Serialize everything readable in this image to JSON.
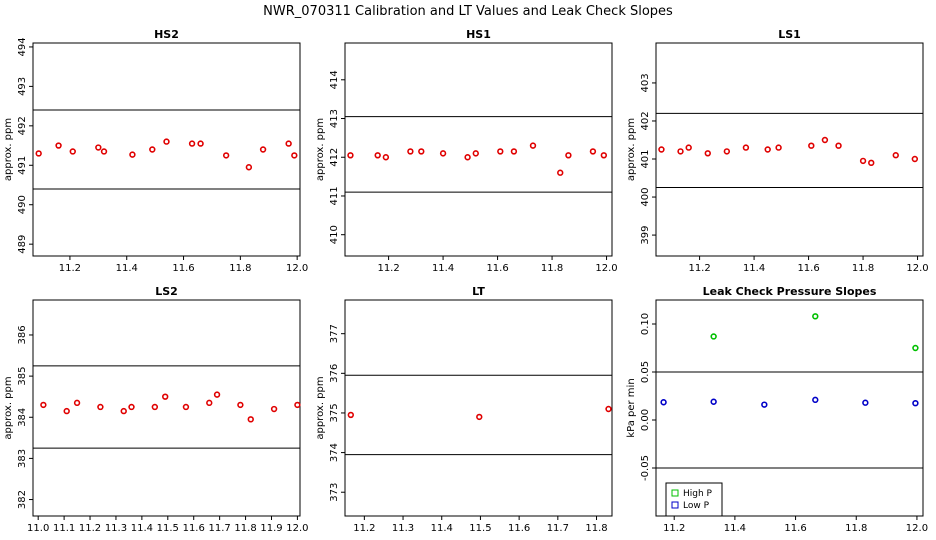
{
  "figure": {
    "title": "NWR_070311  Calibration and LT Values and Leak Check Slopes"
  },
  "chart_data": [
    {
      "id": "hs2",
      "type": "scatter",
      "title": "HS2",
      "ylabel": "approx. ppm",
      "xlim": [
        11.07,
        12.01
      ],
      "ylim": [
        488.7,
        494.1
      ],
      "xticks": [
        11.2,
        11.4,
        11.6,
        11.8,
        12.0
      ],
      "xtick_labels": [
        "11.2",
        "11.4",
        "11.6",
        "11.8",
        "12.0"
      ],
      "yticks": [
        489,
        490,
        491,
        492,
        493,
        494
      ],
      "ytick_labels": [
        "489",
        "490",
        "491",
        "492",
        "493",
        "494"
      ],
      "hlines": [
        490.4,
        492.4
      ],
      "series": [
        {
          "color": "#e00000",
          "marker": "circle",
          "x": [
            11.09,
            11.16,
            11.21,
            11.3,
            11.32,
            11.42,
            11.49,
            11.54,
            11.63,
            11.66,
            11.75,
            11.83,
            11.88,
            11.97,
            11.99
          ],
          "y": [
            491.3,
            491.5,
            491.35,
            491.45,
            491.35,
            491.27,
            491.4,
            491.6,
            491.55,
            491.55,
            491.25,
            490.95,
            491.4,
            491.55,
            491.25
          ]
        }
      ]
    },
    {
      "id": "hs1",
      "type": "scatter",
      "title": "HS1",
      "ylabel": "approx. ppm",
      "xlim": [
        11.04,
        12.02
      ],
      "ylim": [
        409.45,
        414.95
      ],
      "xticks": [
        11.2,
        11.4,
        11.6,
        11.8,
        12.0
      ],
      "xtick_labels": [
        "11.2",
        "11.4",
        "11.6",
        "11.8",
        "12.0"
      ],
      "yticks": [
        410,
        411,
        412,
        413,
        414
      ],
      "ytick_labels": [
        "410",
        "411",
        "412",
        "413",
        "414"
      ],
      "hlines": [
        411.1,
        413.05
      ],
      "series": [
        {
          "color": "#e00000",
          "marker": "circle",
          "x": [
            11.06,
            11.16,
            11.19,
            11.28,
            11.32,
            11.4,
            11.49,
            11.52,
            11.61,
            11.66,
            11.73,
            11.83,
            11.86,
            11.95,
            11.99
          ],
          "y": [
            412.05,
            412.05,
            412.0,
            412.15,
            412.15,
            412.1,
            412.0,
            412.1,
            412.15,
            412.15,
            412.3,
            411.6,
            412.05,
            412.15,
            412.05
          ]
        }
      ]
    },
    {
      "id": "ls1",
      "type": "scatter",
      "title": "LS1",
      "ylabel": "approx. ppm",
      "xlim": [
        11.04,
        12.02
      ],
      "ylim": [
        398.45,
        404.05
      ],
      "xticks": [
        11.2,
        11.4,
        11.6,
        11.8,
        12.0
      ],
      "xtick_labels": [
        "11.2",
        "11.4",
        "11.6",
        "11.8",
        "12.0"
      ],
      "yticks": [
        399,
        400,
        401,
        402,
        403
      ],
      "ytick_labels": [
        "399",
        "400",
        "401",
        "402",
        "403"
      ],
      "hlines": [
        400.25,
        402.2
      ],
      "series": [
        {
          "color": "#e00000",
          "marker": "circle",
          "x": [
            11.06,
            11.13,
            11.16,
            11.23,
            11.3,
            11.37,
            11.45,
            11.49,
            11.61,
            11.66,
            11.71,
            11.8,
            11.83,
            11.92,
            11.99
          ],
          "y": [
            401.25,
            401.2,
            401.3,
            401.15,
            401.2,
            401.3,
            401.25,
            401.3,
            401.35,
            401.5,
            401.35,
            400.95,
            400.9,
            401.1,
            401.0
          ]
        }
      ]
    },
    {
      "id": "ls2",
      "type": "scatter",
      "title": "LS2",
      "ylabel": "approx. ppm",
      "xlim": [
        10.98,
        12.01
      ],
      "ylim": [
        381.6,
        386.85
      ],
      "xticks": [
        11.0,
        11.1,
        11.2,
        11.3,
        11.4,
        11.5,
        11.6,
        11.7,
        11.8,
        11.9,
        12.0
      ],
      "xtick_labels": [
        "11.0",
        "11.1",
        "11.2",
        "11.3",
        "11.4",
        "11.5",
        "11.6",
        "11.7",
        "11.8",
        "11.9",
        "12.0"
      ],
      "yticks": [
        382,
        383,
        384,
        385,
        386
      ],
      "ytick_labels": [
        "382",
        "383",
        "384",
        "385",
        "386"
      ],
      "hlines": [
        383.25,
        385.25
      ],
      "series": [
        {
          "color": "#e00000",
          "marker": "circle",
          "x": [
            11.02,
            11.11,
            11.15,
            11.24,
            11.33,
            11.36,
            11.45,
            11.49,
            11.57,
            11.66,
            11.69,
            11.78,
            11.82,
            11.91,
            12.0
          ],
          "y": [
            384.3,
            384.15,
            384.35,
            384.25,
            384.15,
            384.25,
            384.25,
            384.5,
            384.25,
            384.35,
            384.55,
            384.3,
            383.95,
            384.2,
            384.3
          ]
        }
      ]
    },
    {
      "id": "lt",
      "type": "scatter",
      "title": "LT",
      "ylabel": "approx. ppm",
      "xlim": [
        11.15,
        11.84
      ],
      "ylim": [
        372.4,
        377.85
      ],
      "xticks": [
        11.2,
        11.3,
        11.4,
        11.5,
        11.6,
        11.7,
        11.8
      ],
      "xtick_labels": [
        "11.2",
        "11.3",
        "11.4",
        "11.5",
        "11.6",
        "11.7",
        "11.8"
      ],
      "yticks": [
        373,
        374,
        375,
        376,
        377
      ],
      "ytick_labels": [
        "373",
        "374",
        "375",
        "376",
        "377"
      ],
      "hlines": [
        373.95,
        375.95
      ],
      "series": [
        {
          "color": "#e00000",
          "marker": "circle",
          "x": [
            11.165,
            11.497,
            11.831
          ],
          "y": [
            374.95,
            374.9,
            375.1
          ]
        }
      ]
    },
    {
      "id": "leak",
      "type": "scatter",
      "title": "Leak Check Pressure Slopes",
      "ylabel": "kPa per min",
      "xlim": [
        11.14,
        12.02
      ],
      "ylim": [
        -0.1,
        0.125
      ],
      "xticks": [
        11.2,
        11.4,
        11.6,
        11.8,
        12.0
      ],
      "xtick_labels": [
        "11.2",
        "11.4",
        "11.6",
        "11.8",
        "12.0"
      ],
      "yticks": [
        -0.05,
        0.0,
        0.05,
        0.1
      ],
      "ytick_labels": [
        "-0.05",
        "0.00",
        "0.05",
        "0.10"
      ],
      "hlines": [
        -0.05,
        0.05
      ],
      "legend": {
        "placement": "bottom-left",
        "entries": [
          {
            "label": "High P",
            "color": "#00c000"
          },
          {
            "label": "Low P",
            "color": "#0000c8"
          }
        ]
      },
      "series": [
        {
          "name": "High P",
          "color": "#00c000",
          "marker": "circle",
          "x": [
            11.33,
            11.665,
            11.995
          ],
          "y": [
            0.087,
            0.108,
            0.075
          ]
        },
        {
          "name": "Low P",
          "color": "#0000c8",
          "marker": "circle",
          "x": [
            11.165,
            11.33,
            11.497,
            11.665,
            11.83,
            11.995
          ],
          "y": [
            0.0185,
            0.019,
            0.016,
            0.021,
            0.018,
            0.0175
          ]
        }
      ]
    }
  ]
}
